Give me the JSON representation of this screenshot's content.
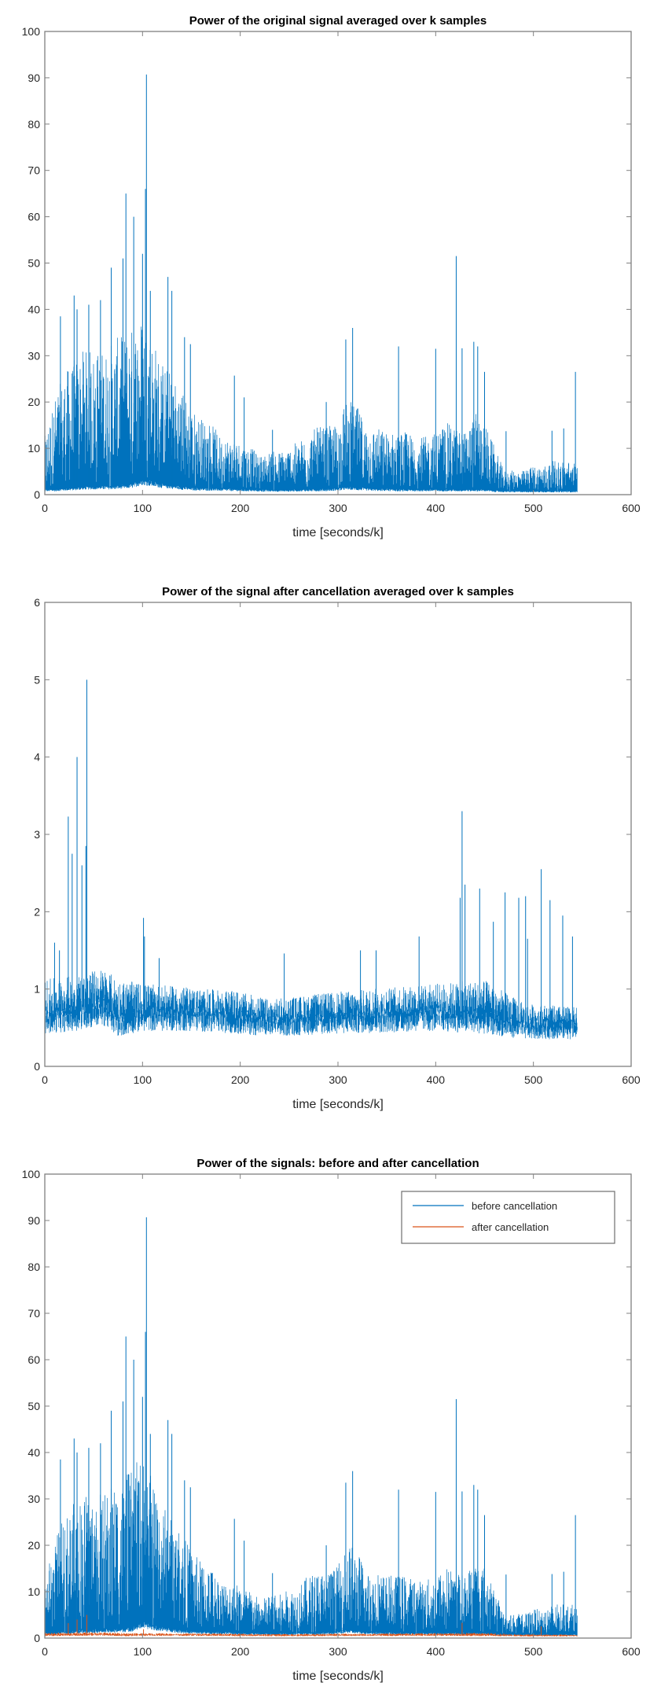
{
  "colors": {
    "before": "#0072BD",
    "after": "#D95319",
    "axis": "#808080"
  },
  "chart_data": [
    {
      "type": "line",
      "title": "Power of the original signal averaged over k samples",
      "xlabel": "time [seconds/k]",
      "ylabel": "",
      "xlim": [
        0,
        600
      ],
      "ylim": [
        0,
        100
      ],
      "xticks": [
        "0",
        "100",
        "200",
        "300",
        "400",
        "500",
        "600"
      ],
      "yticks": [
        "0",
        "10",
        "20",
        "30",
        "40",
        "50",
        "60",
        "70",
        "80",
        "90",
        "100"
      ],
      "grid": false,
      "series": [
        {
          "color": "#0072BD",
          "envelope_x": [
            0,
            10,
            20,
            30,
            40,
            50,
            60,
            70,
            80,
            90,
            100,
            110,
            120,
            130,
            140,
            150,
            160,
            170,
            180,
            190,
            200,
            210,
            220,
            230,
            240,
            250,
            260,
            270,
            280,
            290,
            300,
            310,
            320,
            330,
            340,
            350,
            360,
            370,
            380,
            390,
            400,
            410,
            420,
            430,
            440,
            450,
            460,
            470,
            480,
            490,
            500,
            510,
            520,
            530,
            540,
            545
          ],
          "envelope_low": [
            1,
            1,
            1.2,
            1.3,
            1.5,
            1.6,
            1.6,
            1.6,
            1.8,
            2,
            3,
            2.5,
            2,
            1.8,
            1.5,
            1.3,
            1.2,
            1.2,
            1.1,
            1.1,
            1,
            1,
            0.9,
            0.9,
            0.9,
            0.9,
            1,
            1,
            1,
            1.1,
            1.2,
            1.5,
            1.3,
            1.2,
            1.1,
            1.1,
            1,
            1,
            1,
            1,
            1,
            1,
            1,
            1,
            1,
            1,
            0.8,
            0.7,
            0.7,
            0.7,
            0.7,
            0.7,
            0.7,
            0.7,
            0.7,
            0.7
          ],
          "envelope_high": [
            12,
            20,
            25,
            28,
            30,
            30,
            30,
            32,
            33,
            35,
            38,
            33,
            28,
            25,
            22,
            18,
            16,
            15,
            12,
            12,
            11,
            10,
            8,
            9,
            9,
            10,
            11,
            13,
            14,
            14,
            15,
            20,
            18,
            14,
            14,
            13,
            13,
            13,
            12,
            12,
            13,
            15,
            14,
            13,
            17,
            15,
            10,
            5,
            5,
            5,
            6,
            6,
            7,
            7,
            7,
            6
          ],
          "spikes": [
            [
              16,
              38.5
            ],
            [
              30,
              43
            ],
            [
              33,
              40
            ],
            [
              45,
              41
            ],
            [
              57,
              42
            ],
            [
              68,
              49
            ],
            [
              80,
              51
            ],
            [
              83,
              65
            ],
            [
              91,
              60
            ],
            [
              100,
              52
            ],
            [
              103,
              66
            ],
            [
              104,
              90.7
            ],
            [
              108,
              44
            ],
            [
              126,
              47
            ],
            [
              130,
              44
            ],
            [
              143,
              34
            ],
            [
              149,
              32.5
            ],
            [
              194,
              25.7
            ],
            [
              204,
              21
            ],
            [
              233,
              14
            ],
            [
              288,
              20
            ],
            [
              308,
              33.5
            ],
            [
              315,
              36
            ],
            [
              362,
              32
            ],
            [
              400,
              31.5
            ],
            [
              421,
              51.5
            ],
            [
              427,
              31.6
            ],
            [
              439,
              33
            ],
            [
              443,
              32
            ],
            [
              450,
              26.5
            ],
            [
              472,
              13.7
            ],
            [
              519,
              13.8
            ],
            [
              531,
              14.3
            ],
            [
              543,
              26.5
            ]
          ]
        }
      ]
    },
    {
      "type": "line",
      "title": "Power of the signal after cancellation averaged over k samples",
      "xlabel": "time [seconds/k]",
      "ylabel": "",
      "xlim": [
        0,
        600
      ],
      "ylim": [
        0,
        6
      ],
      "xticks": [
        "0",
        "100",
        "200",
        "300",
        "400",
        "500",
        "600"
      ],
      "yticks": [
        "0",
        "1",
        "2",
        "3",
        "4",
        "5",
        "6"
      ],
      "grid": false,
      "series": [
        {
          "color": "#0072BD",
          "envelope_x": [
            0,
            30,
            60,
            75,
            100,
            150,
            200,
            230,
            300,
            400,
            450,
            490,
            545
          ],
          "envelope_low": [
            0.6,
            0.65,
            0.75,
            0.55,
            0.65,
            0.65,
            0.6,
            0.55,
            0.6,
            0.65,
            0.6,
            0.5,
            0.5
          ],
          "envelope_high": [
            1.1,
            1.15,
            1.25,
            1.1,
            1.05,
            1.0,
            0.95,
            0.85,
            0.95,
            1.05,
            1.1,
            0.8,
            0.75
          ],
          "spikes": [
            [
              10,
              1.6
            ],
            [
              15,
              1.5
            ],
            [
              24,
              3.23
            ],
            [
              28,
              2.75
            ],
            [
              33,
              4.0
            ],
            [
              38,
              2.6
            ],
            [
              42,
              2.85
            ],
            [
              43,
              5.0
            ],
            [
              101,
              1.92
            ],
            [
              102,
              1.68
            ],
            [
              117,
              1.4
            ],
            [
              245,
              1.46
            ],
            [
              323,
              1.5
            ],
            [
              339,
              1.5
            ],
            [
              383,
              1.68
            ],
            [
              425,
              2.18
            ],
            [
              427,
              3.3
            ],
            [
              430,
              2.35
            ],
            [
              445,
              2.3
            ],
            [
              459,
              1.87
            ],
            [
              471,
              2.25
            ],
            [
              485,
              2.18
            ],
            [
              492,
              2.2
            ],
            [
              494,
              1.65
            ],
            [
              508,
              2.55
            ],
            [
              517,
              2.15
            ],
            [
              530,
              1.95
            ],
            [
              540,
              1.68
            ]
          ]
        }
      ]
    },
    {
      "type": "line",
      "title": "Power of the signals: before and after cancellation",
      "xlabel": "time [seconds/k]",
      "ylabel": "",
      "xlim": [
        0,
        600
      ],
      "ylim": [
        0,
        100
      ],
      "xticks": [
        "0",
        "100",
        "200",
        "300",
        "400",
        "500",
        "600"
      ],
      "yticks": [
        "0",
        "10",
        "20",
        "30",
        "40",
        "50",
        "60",
        "70",
        "80",
        "90",
        "100"
      ],
      "grid": false,
      "legend": {
        "position": "top-right",
        "entries": [
          "before cancellation",
          "after cancellation"
        ]
      },
      "series": [
        {
          "name": "before cancellation",
          "color": "#0072BD",
          "envelope_x": [
            0,
            10,
            20,
            30,
            40,
            50,
            60,
            70,
            80,
            90,
            100,
            110,
            120,
            130,
            140,
            150,
            160,
            170,
            180,
            190,
            200,
            210,
            220,
            230,
            240,
            250,
            260,
            270,
            280,
            290,
            300,
            310,
            320,
            330,
            340,
            350,
            360,
            370,
            380,
            390,
            400,
            410,
            420,
            430,
            440,
            450,
            460,
            470,
            480,
            490,
            500,
            510,
            520,
            530,
            540,
            545
          ],
          "envelope_low": [
            1,
            1,
            1.2,
            1.3,
            1.5,
            1.6,
            1.6,
            1.6,
            1.8,
            2,
            3,
            2.5,
            2,
            1.8,
            1.5,
            1.3,
            1.2,
            1.2,
            1.1,
            1.1,
            1,
            1,
            0.9,
            0.9,
            0.9,
            0.9,
            1,
            1,
            1,
            1.1,
            1.2,
            1.5,
            1.3,
            1.2,
            1.1,
            1.1,
            1,
            1,
            1,
            1,
            1,
            1,
            1,
            1,
            1,
            1,
            0.8,
            0.7,
            0.7,
            0.7,
            0.7,
            0.7,
            0.7,
            0.7,
            0.7,
            0.7
          ],
          "envelope_high": [
            12,
            20,
            25,
            28,
            30,
            30,
            30,
            32,
            33,
            35,
            38,
            33,
            28,
            25,
            22,
            18,
            16,
            15,
            12,
            12,
            11,
            10,
            8,
            9,
            9,
            10,
            11,
            13,
            14,
            14,
            15,
            20,
            18,
            14,
            14,
            13,
            13,
            13,
            12,
            12,
            13,
            15,
            14,
            13,
            17,
            15,
            10,
            5,
            5,
            5,
            6,
            6,
            7,
            7,
            7,
            6
          ],
          "spikes": [
            [
              16,
              38.5
            ],
            [
              30,
              43
            ],
            [
              33,
              40
            ],
            [
              45,
              41
            ],
            [
              57,
              42
            ],
            [
              68,
              49
            ],
            [
              80,
              51
            ],
            [
              83,
              65
            ],
            [
              91,
              60
            ],
            [
              100,
              52
            ],
            [
              103,
              66
            ],
            [
              104,
              90.7
            ],
            [
              108,
              44
            ],
            [
              126,
              47
            ],
            [
              130,
              44
            ],
            [
              143,
              34
            ],
            [
              149,
              32.5
            ],
            [
              194,
              25.7
            ],
            [
              204,
              21
            ],
            [
              233,
              14
            ],
            [
              288,
              20
            ],
            [
              308,
              33.5
            ],
            [
              315,
              36
            ],
            [
              362,
              32
            ],
            [
              400,
              31.5
            ],
            [
              421,
              51.5
            ],
            [
              427,
              31.6
            ],
            [
              439,
              33
            ],
            [
              443,
              32
            ],
            [
              450,
              26.5
            ],
            [
              472,
              13.7
            ],
            [
              519,
              13.8
            ],
            [
              531,
              14.3
            ],
            [
              543,
              26.5
            ]
          ]
        },
        {
          "name": "after cancellation",
          "color": "#D95319",
          "envelope_x": [
            0,
            30,
            60,
            75,
            100,
            150,
            200,
            230,
            300,
            400,
            450,
            490,
            545
          ],
          "envelope_low": [
            0.6,
            0.65,
            0.75,
            0.55,
            0.65,
            0.65,
            0.6,
            0.55,
            0.6,
            0.65,
            0.6,
            0.5,
            0.5
          ],
          "envelope_high": [
            1.1,
            1.15,
            1.25,
            1.1,
            1.05,
            1.0,
            0.95,
            0.85,
            0.95,
            1.05,
            1.1,
            0.8,
            0.75
          ],
          "spikes": [
            [
              24,
              3.23
            ],
            [
              33,
              4.0
            ],
            [
              43,
              5.0
            ],
            [
              101,
              1.92
            ],
            [
              427,
              3.3
            ],
            [
              508,
              2.55
            ]
          ]
        }
      ]
    }
  ]
}
